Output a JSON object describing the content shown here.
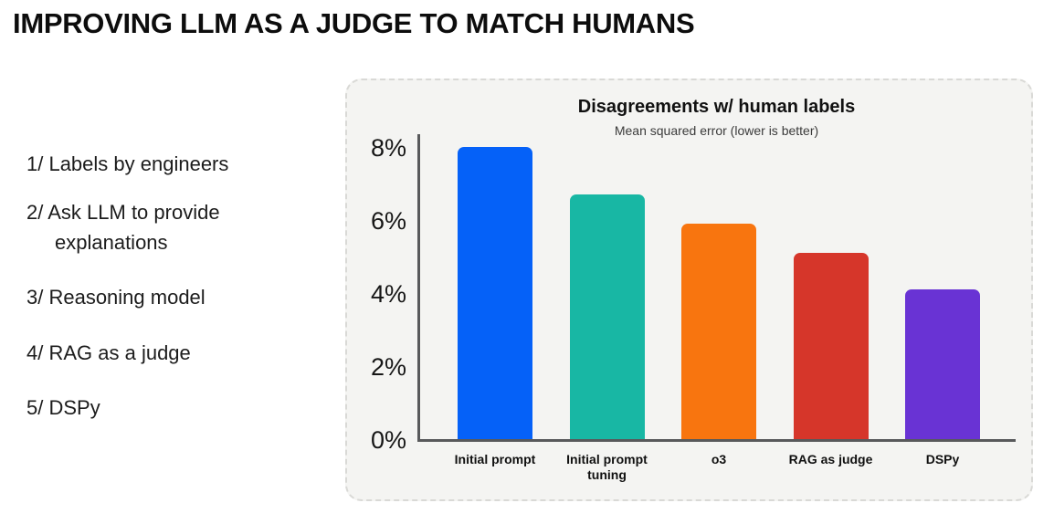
{
  "header": {
    "title": "IMPROVING LLM AS A JUDGE TO MATCH HUMANS"
  },
  "steps": {
    "items": [
      {
        "label": "1/ Labels by engineers"
      },
      {
        "label": "2/ Ask LLM to provide explanations"
      },
      {
        "label": "3/ Reasoning model"
      },
      {
        "label": "4/ RAG as a judge"
      },
      {
        "label": "5/ DSPy"
      }
    ]
  },
  "chart_panel": {
    "title": "Disagreements w/ human labels",
    "subtitle": "Mean squared error (lower is better)"
  },
  "chart_data": {
    "type": "bar",
    "title": "Disagreements w/ human labels",
    "subtitle": "Mean squared error (lower is better)",
    "categories": [
      "Initial prompt",
      "Initial prompt tuning",
      "o3",
      "RAG as judge",
      "DSPy"
    ],
    "values": [
      8.0,
      6.7,
      5.9,
      5.1,
      4.1
    ],
    "unit": "%",
    "bar_colors": [
      "#0561f8",
      "#18b7a4",
      "#f8750f",
      "#d6362a",
      "#6933d4"
    ],
    "xlabel": "",
    "ylabel": "",
    "ylim": [
      0,
      8
    ],
    "yticks": [
      "0%",
      "2%",
      "4%",
      "6%",
      "8%"
    ],
    "grid": false,
    "legend": false,
    "axis_color": "#58595b",
    "panel_background": "#f4f4f2"
  }
}
